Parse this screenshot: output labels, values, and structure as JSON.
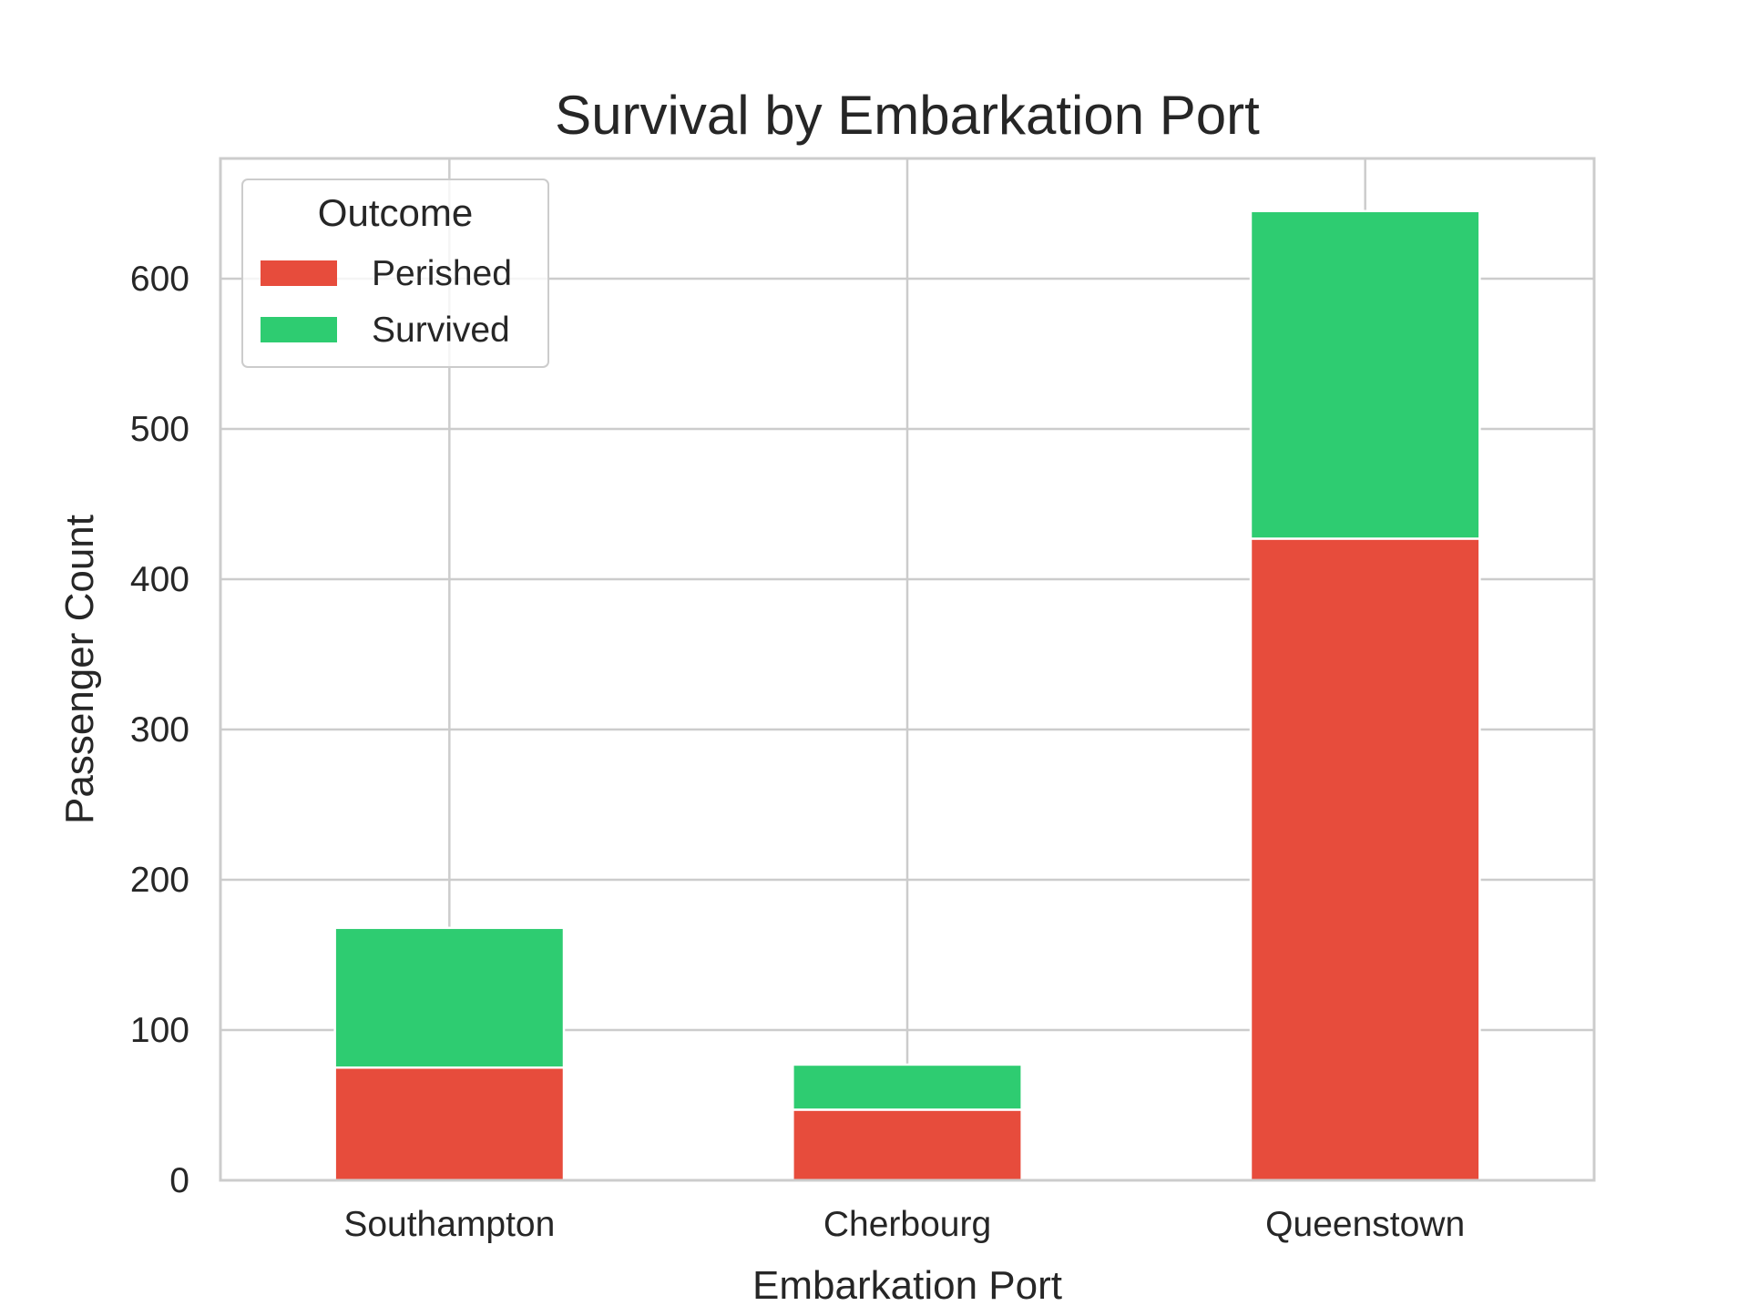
{
  "chart_data": {
    "type": "bar",
    "stacked": true,
    "title": "Survival by Embarkation Port",
    "xlabel": "Embarkation Port",
    "ylabel": "Passenger Count",
    "categories": [
      "Southampton",
      "Cherbourg",
      "Queenstown"
    ],
    "series": [
      {
        "name": "Perished",
        "color": "#e74c3c",
        "values": [
          75,
          47,
          427
        ]
      },
      {
        "name": "Survived",
        "color": "#2ecc71",
        "values": [
          93,
          30,
          218
        ]
      }
    ],
    "ylim": [
      0,
      680
    ],
    "yticks": [
      0,
      100,
      200,
      300,
      400,
      500,
      600
    ],
    "grid": true,
    "legend": {
      "title": "Outcome",
      "placement": "upper-left"
    }
  }
}
